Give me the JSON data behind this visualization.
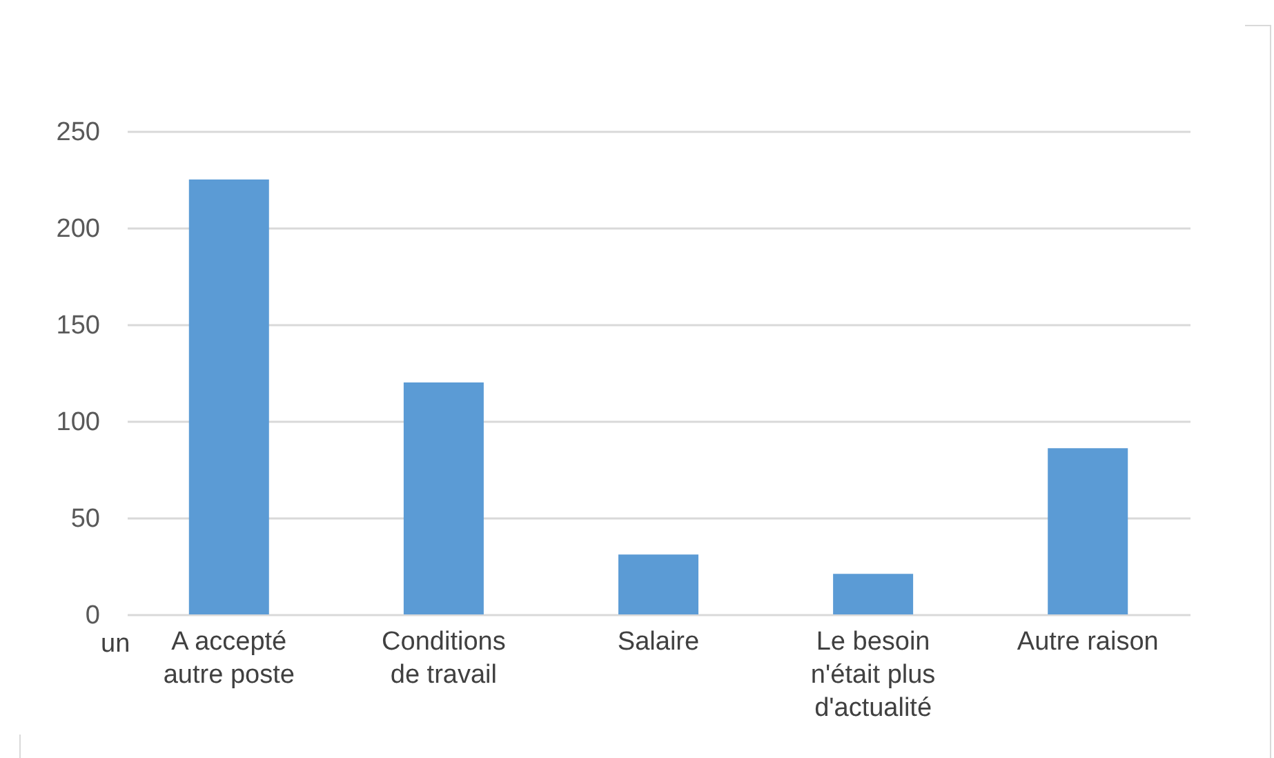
{
  "chart_data": {
    "type": "bar",
    "categories": [
      [
        "A accepté",
        "autre poste"
      ],
      [
        "Conditions",
        "de travail"
      ],
      [
        "Salaire"
      ],
      [
        "Le besoin",
        "n'était plus",
        "d'actualité"
      ],
      [
        "Autre raison"
      ]
    ],
    "values": [
      225,
      120,
      31,
      21,
      86
    ],
    "color": "#5b9bd5",
    "ylim": [
      0,
      250
    ],
    "yticks": [
      0,
      50,
      100,
      150,
      200,
      250
    ],
    "grid": "y",
    "annotations": [
      "un"
    ]
  }
}
